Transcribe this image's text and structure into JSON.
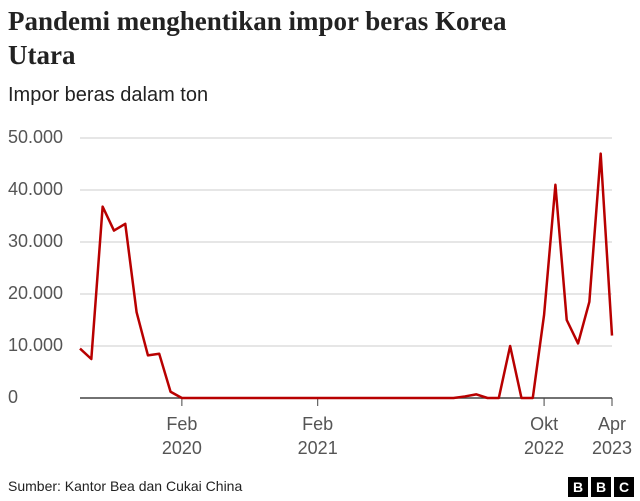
{
  "chart_data": {
    "type": "line",
    "title": "Pandemi menghentikan impor beras Korea Utara",
    "subtitle": "Impor beras dalam ton",
    "source": "Sumber: Kantor Bea dan Cukai China",
    "logo": [
      "B",
      "B",
      "C"
    ],
    "categories": [
      null,
      null,
      null,
      null,
      null,
      null,
      null,
      null,
      null,
      "Feb 2020",
      null,
      null,
      null,
      null,
      null,
      null,
      null,
      null,
      null,
      null,
      null,
      "Feb 2021",
      null,
      null,
      null,
      null,
      null,
      null,
      null,
      null,
      null,
      null,
      null,
      null,
      null,
      null,
      null,
      null,
      null,
      null,
      null,
      "Okt 2022",
      null,
      null,
      null,
      null,
      null,
      "Apr 2023"
    ],
    "values": [
      9500,
      7500,
      36800,
      32200,
      33500,
      16500,
      8200,
      8500,
      1200,
      0,
      0,
      0,
      0,
      0,
      0,
      0,
      0,
      0,
      0,
      0,
      0,
      0,
      0,
      0,
      0,
      0,
      0,
      0,
      0,
      0,
      0,
      0,
      0,
      0,
      300,
      700,
      0,
      0,
      10000,
      0,
      0,
      16000,
      41000,
      15000,
      10500,
      18500,
      47000,
      12000
    ],
    "color": "#b80000",
    "ylim": [
      0,
      50000
    ],
    "yticks": [
      0,
      {
        "value": 10000,
        "label": "10.000"
      },
      {
        "value": 20000,
        "label": "20.000"
      },
      {
        "value": 30000,
        "label": "30.000"
      },
      {
        "value": 40000,
        "label": "40.000"
      },
      {
        "value": 50000,
        "label": "50.000"
      }
    ],
    "grid": true
  }
}
